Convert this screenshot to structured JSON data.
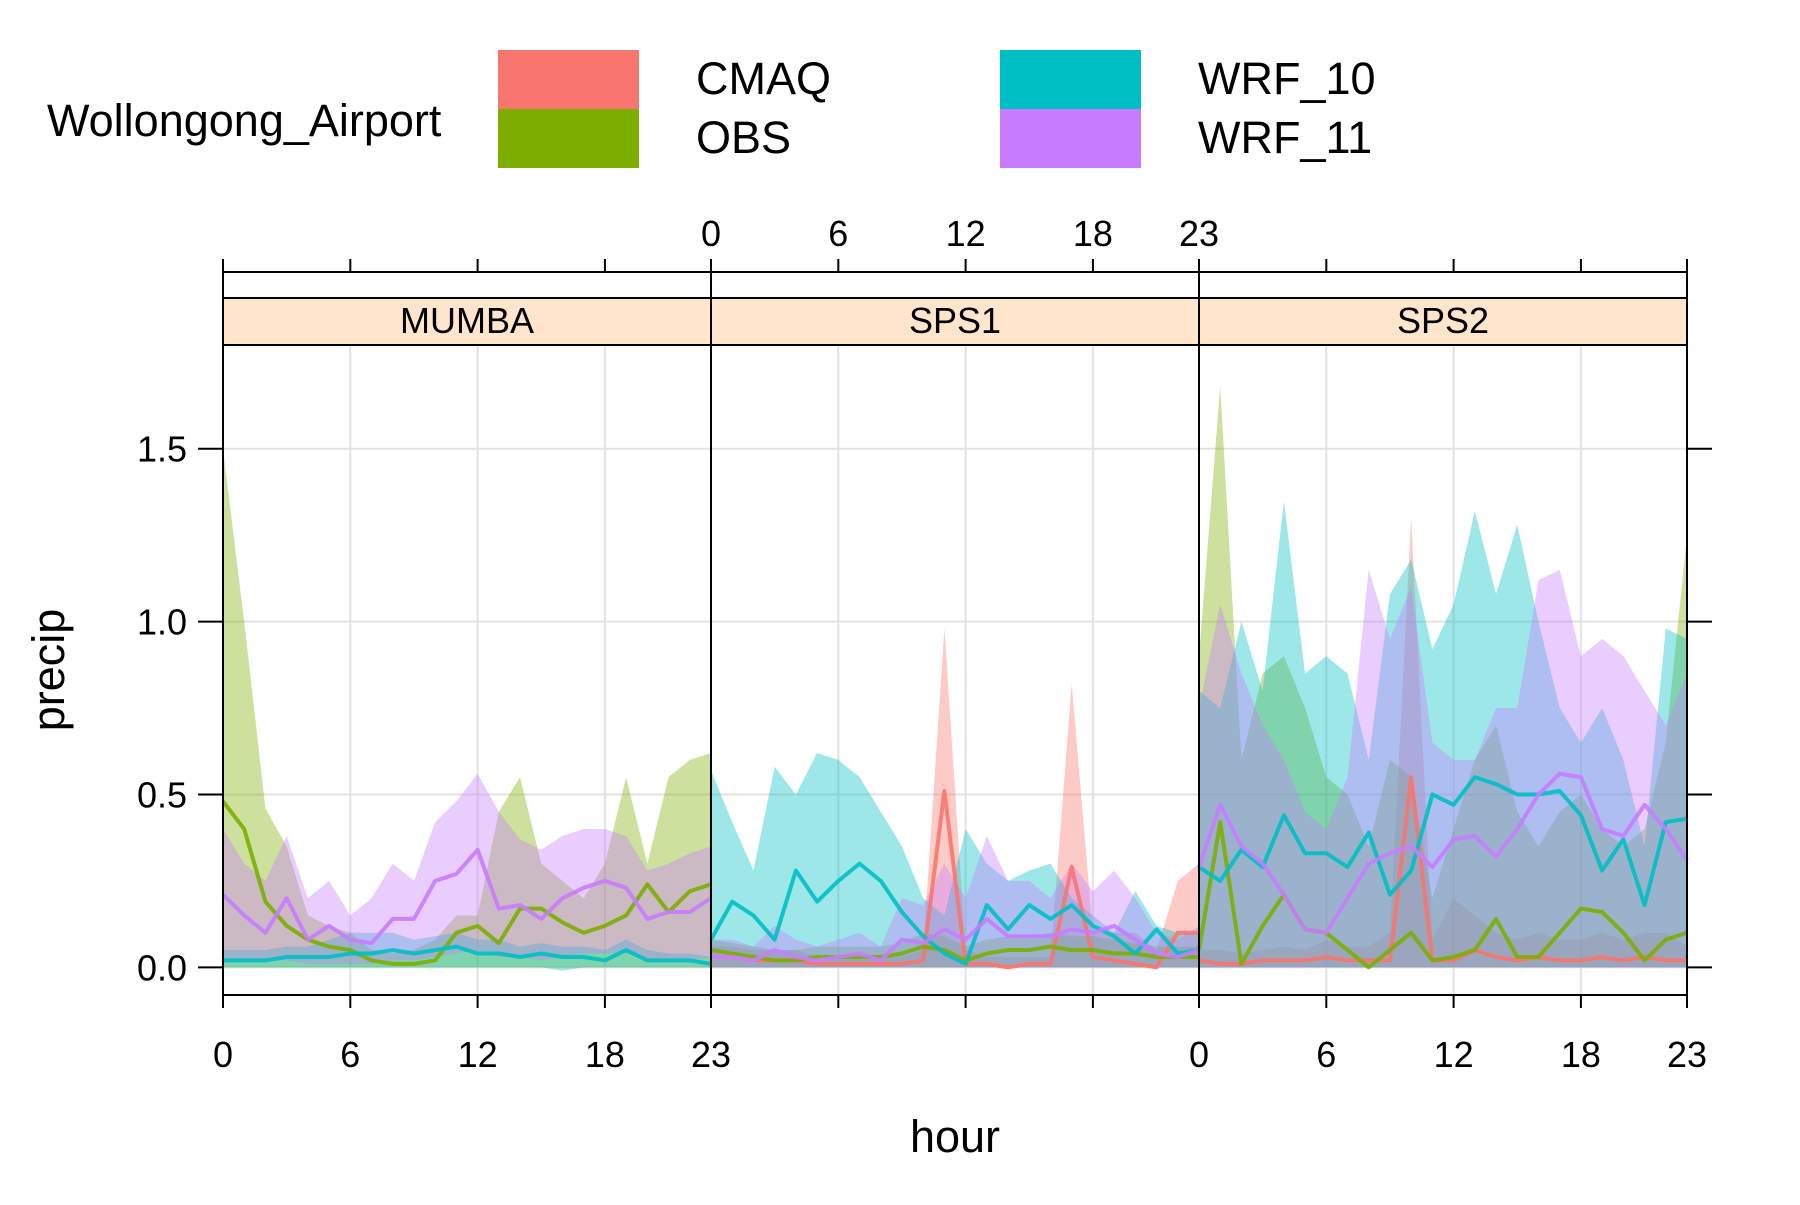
{
  "chart_data": {
    "type": "area",
    "title": "",
    "xlabel": "hour",
    "ylabel": "precip",
    "legend_title": "Wollongong_Airport",
    "legend_placement": "top",
    "xlim": [
      0,
      23
    ],
    "ylim": [
      -0.08,
      1.8
    ],
    "x_ticks": [
      0,
      6,
      12,
      18,
      23
    ],
    "y_ticks": [
      0.0,
      0.5,
      1.0,
      1.5
    ],
    "y_tick_labels": [
      "0.0",
      "0.5",
      "1.0",
      "1.5"
    ],
    "grid": true,
    "series": [
      {
        "name": "CMAQ",
        "color": "#F8766D"
      },
      {
        "name": "OBS",
        "color": "#7CAE00"
      },
      {
        "name": "WRF_10",
        "color": "#00BFC4"
      },
      {
        "name": "WRF_11",
        "color": "#C77CFF"
      }
    ],
    "panels": [
      {
        "name": "MUMBA",
        "data": {
          "OBS": {
            "mean": [
              0.48,
              0.4,
              0.19,
              0.12,
              0.08,
              0.06,
              0.05,
              0.02,
              0.01,
              0.01,
              0.02,
              0.1,
              0.12,
              0.07,
              0.17,
              0.17,
              0.13,
              0.1,
              0.12,
              0.15,
              0.24,
              0.16,
              0.22,
              0.24
            ],
            "upper": [
              1.5,
              1.0,
              0.46,
              0.35,
              0.15,
              0.12,
              0.1,
              0.05,
              0.04,
              0.05,
              0.08,
              0.15,
              0.15,
              0.45,
              0.55,
              0.3,
              0.25,
              0.2,
              0.3,
              0.55,
              0.3,
              0.55,
              0.6,
              0.62
            ],
            "lower": [
              0,
              0,
              0,
              0,
              0,
              0,
              0,
              0,
              0,
              0,
              0,
              0,
              0,
              0,
              0,
              0,
              0,
              0,
              0,
              0,
              0,
              0,
              0,
              0
            ]
          },
          "WRF_10": {
            "mean": [
              0.02,
              0.02,
              0.02,
              0.03,
              0.03,
              0.03,
              0.04,
              0.04,
              0.05,
              0.04,
              0.05,
              0.06,
              0.04,
              0.04,
              0.03,
              0.04,
              0.03,
              0.03,
              0.02,
              0.05,
              0.02,
              0.02,
              0.02,
              0.01
            ],
            "upper": [
              0.05,
              0.05,
              0.05,
              0.06,
              0.06,
              0.08,
              0.1,
              0.1,
              0.1,
              0.08,
              0.09,
              0.1,
              0.08,
              0.08,
              0.06,
              0.07,
              0.06,
              0.06,
              0.05,
              0.08,
              0.05,
              0.04,
              0.04,
              0.03
            ],
            "lower": [
              0.0,
              0.0,
              0.0,
              0.0,
              0.0,
              0.0,
              0.0,
              0.0,
              0.0,
              0.0,
              0.0,
              0.0,
              0.0,
              0.0,
              0.0,
              0.0,
              -0.01,
              0.0,
              0.0,
              0.0,
              0.0,
              0.0,
              0.0,
              0.0
            ]
          },
          "WRF_11": {
            "mean": [
              0.21,
              0.15,
              0.1,
              0.2,
              0.08,
              0.12,
              0.08,
              0.07,
              0.14,
              0.14,
              0.25,
              0.27,
              0.34,
              0.17,
              0.18,
              0.14,
              0.2,
              0.23,
              0.25,
              0.23,
              0.14,
              0.16,
              0.16,
              0.2
            ],
            "upper": [
              0.4,
              0.3,
              0.25,
              0.38,
              0.2,
              0.25,
              0.15,
              0.2,
              0.3,
              0.25,
              0.42,
              0.48,
              0.56,
              0.45,
              0.37,
              0.34,
              0.38,
              0.4,
              0.4,
              0.38,
              0.28,
              0.3,
              0.33,
              0.35
            ],
            "lower": [
              0.02,
              0.02,
              0.02,
              0.02,
              0.01,
              0.01,
              0.01,
              0.01,
              0.02,
              0.02,
              0.03,
              0.04,
              0.05,
              0.03,
              0.03,
              0.02,
              0.03,
              0.04,
              0.04,
              0.04,
              0.02,
              0.02,
              0.02,
              0.03
            ]
          }
        }
      },
      {
        "name": "SPS1",
        "data": {
          "CMAQ": {
            "mean": [
              0.03,
              0.03,
              0.02,
              0.02,
              0.02,
              0.01,
              0.01,
              0.01,
              0.01,
              0.01,
              0.02,
              0.51,
              0.01,
              0.01,
              0.0,
              0.01,
              0.01,
              0.29,
              0.03,
              0.02,
              0.01,
              0.0,
              0.1,
              0.1
            ],
            "upper": [
              0.06,
              0.06,
              0.05,
              0.05,
              0.05,
              0.03,
              0.03,
              0.03,
              0.03,
              0.03,
              0.05,
              0.98,
              0.05,
              0.03,
              0.03,
              0.03,
              0.03,
              0.82,
              0.1,
              0.1,
              0.1,
              0.05,
              0.25,
              0.3
            ],
            "lower": [
              0,
              0,
              0,
              0,
              0,
              0,
              0,
              0,
              0,
              0,
              0,
              0,
              0,
              0,
              0,
              0,
              0,
              0,
              0,
              0,
              0,
              0,
              0,
              0
            ]
          },
          "OBS": {
            "mean": [
              0.05,
              0.04,
              0.03,
              0.02,
              0.02,
              0.03,
              0.03,
              0.03,
              0.03,
              0.04,
              0.06,
              0.05,
              0.02,
              0.04,
              0.05,
              0.05,
              0.06,
              0.05,
              0.05,
              0.04,
              0.04,
              0.03,
              0.03,
              0.03
            ],
            "upper": [
              0.08,
              0.07,
              0.06,
              0.05,
              0.05,
              0.06,
              0.06,
              0.06,
              0.06,
              0.07,
              0.1,
              0.09,
              0.06,
              0.08,
              0.09,
              0.09,
              0.1,
              0.09,
              0.09,
              0.08,
              0.07,
              0.06,
              0.06,
              0.06
            ],
            "lower": [
              0,
              0,
              0,
              0,
              0,
              0,
              0,
              0,
              0,
              0,
              0,
              0,
              0,
              0,
              0,
              0,
              0,
              0,
              0,
              0,
              0,
              0,
              0,
              0
            ]
          },
          "WRF_10": {
            "mean": [
              0.08,
              0.19,
              0.15,
              0.08,
              0.28,
              0.19,
              0.25,
              0.3,
              0.25,
              0.16,
              0.09,
              0.04,
              0.01,
              0.18,
              0.11,
              0.18,
              0.14,
              0.18,
              0.12,
              0.09,
              0.04,
              0.11,
              0.04,
              0.05
            ],
            "upper": [
              0.57,
              0.42,
              0.28,
              0.58,
              0.5,
              0.62,
              0.6,
              0.55,
              0.45,
              0.35,
              0.2,
              0.15,
              0.4,
              0.3,
              0.25,
              0.28,
              0.3,
              0.2,
              0.15,
              0.1,
              0.22,
              0.12,
              0.1,
              0.1
            ],
            "lower": [
              0,
              0,
              0,
              0,
              0,
              0,
              0,
              0,
              0,
              0,
              0,
              0,
              0,
              0,
              0,
              0,
              0,
              0,
              0,
              0,
              0,
              0,
              0,
              0
            ]
          },
          "WRF_11": {
            "mean": [
              0.03,
              0.03,
              0.02,
              0.05,
              0.03,
              0.02,
              0.03,
              0.04,
              0.02,
              0.08,
              0.07,
              0.11,
              0.08,
              0.14,
              0.09,
              0.09,
              0.09,
              0.11,
              0.1,
              0.12,
              0.08,
              0.04,
              0.03,
              0.05
            ],
            "upper": [
              0.08,
              0.08,
              0.06,
              0.12,
              0.08,
              0.06,
              0.08,
              0.1,
              0.06,
              0.2,
              0.18,
              0.3,
              0.2,
              0.38,
              0.25,
              0.25,
              0.2,
              0.3,
              0.22,
              0.28,
              0.2,
              0.1,
              0.08,
              0.12
            ],
            "lower": [
              0,
              0,
              0,
              0,
              0,
              0,
              0,
              0,
              0,
              0,
              0,
              0,
              0,
              0,
              0,
              0,
              0,
              0,
              0,
              0,
              0,
              0,
              0,
              0
            ]
          }
        }
      },
      {
        "name": "SPS2",
        "data": {
          "CMAQ": {
            "mean": [
              0.02,
              0.01,
              0.01,
              0.02,
              0.02,
              0.02,
              0.03,
              0.02,
              0.02,
              0.02,
              0.55,
              0.02,
              0.02,
              0.05,
              0.03,
              0.02,
              0.03,
              0.02,
              0.02,
              0.03,
              0.02,
              0.03,
              0.02,
              0.02
            ],
            "upper": [
              0.05,
              0.05,
              0.04,
              0.05,
              0.06,
              0.05,
              0.08,
              0.06,
              0.06,
              0.1,
              1.3,
              0.08,
              0.2,
              0.15,
              0.1,
              0.08,
              0.1,
              0.08,
              0.08,
              0.1,
              0.08,
              0.1,
              0.1,
              0.06
            ],
            "lower": [
              0,
              0,
              0,
              0,
              0,
              0,
              0,
              0,
              0,
              0,
              0,
              0,
              0,
              0,
              0,
              0,
              0,
              0,
              0,
              0,
              0,
              0,
              0,
              0
            ]
          },
          "OBS": {
            "mean": [
              0.05,
              0.42,
              0.01,
              0.12,
              0.21,
              0.11,
              0.1,
              0.05,
              0.0,
              0.05,
              0.1,
              0.02,
              0.03,
              0.05,
              0.14,
              0.03,
              0.03,
              0.1,
              0.17,
              0.16,
              0.1,
              0.02,
              0.08,
              0.1
            ],
            "upper": [
              0.9,
              1.68,
              0.6,
              0.85,
              0.9,
              0.75,
              0.55,
              0.5,
              0.35,
              0.6,
              0.55,
              0.2,
              0.4,
              0.6,
              0.7,
              0.45,
              0.35,
              0.45,
              0.5,
              0.4,
              0.35,
              0.4,
              0.65,
              1.25
            ],
            "lower": [
              0,
              0,
              0,
              0,
              0,
              0,
              0,
              0,
              0,
              0,
              0,
              0,
              0,
              0,
              0,
              0,
              0,
              0,
              0,
              0,
              0,
              0,
              0,
              0
            ]
          },
          "WRF_10": {
            "mean": [
              0.29,
              0.25,
              0.34,
              0.29,
              0.44,
              0.33,
              0.33,
              0.29,
              0.39,
              0.21,
              0.28,
              0.5,
              0.47,
              0.55,
              0.53,
              0.5,
              0.5,
              0.51,
              0.44,
              0.28,
              0.37,
              0.18,
              0.42,
              0.43
            ],
            "upper": [
              0.8,
              0.75,
              1.0,
              0.8,
              1.35,
              0.85,
              0.9,
              0.85,
              0.6,
              1.08,
              1.18,
              0.92,
              1.05,
              1.32,
              1.08,
              1.28,
              1.0,
              0.75,
              0.65,
              0.75,
              0.6,
              0.35,
              0.98,
              0.95
            ],
            "lower": [
              0,
              0,
              0,
              0,
              0,
              0,
              0,
              0,
              0,
              0,
              0,
              0,
              0,
              0,
              0,
              0,
              0,
              0,
              0,
              0,
              0,
              0,
              0,
              0
            ]
          },
          "WRF_11": {
            "mean": [
              0.29,
              0.47,
              0.35,
              0.3,
              0.21,
              0.11,
              0.1,
              0.2,
              0.3,
              0.33,
              0.35,
              0.29,
              0.37,
              0.38,
              0.32,
              0.4,
              0.5,
              0.56,
              0.55,
              0.4,
              0.38,
              0.47,
              0.4,
              0.31
            ],
            "upper": [
              0.75,
              1.05,
              0.85,
              0.7,
              0.6,
              0.45,
              0.4,
              0.55,
              1.15,
              0.95,
              1.1,
              0.65,
              0.6,
              0.6,
              0.75,
              0.75,
              1.12,
              1.15,
              0.9,
              0.95,
              0.9,
              0.8,
              0.7,
              0.85
            ],
            "lower": [
              0,
              0,
              0,
              0,
              0,
              0,
              0,
              0,
              0,
              0,
              0,
              0,
              0,
              0,
              0,
              0,
              0,
              0,
              0,
              0,
              0,
              0,
              0,
              0
            ]
          }
        }
      }
    ]
  }
}
